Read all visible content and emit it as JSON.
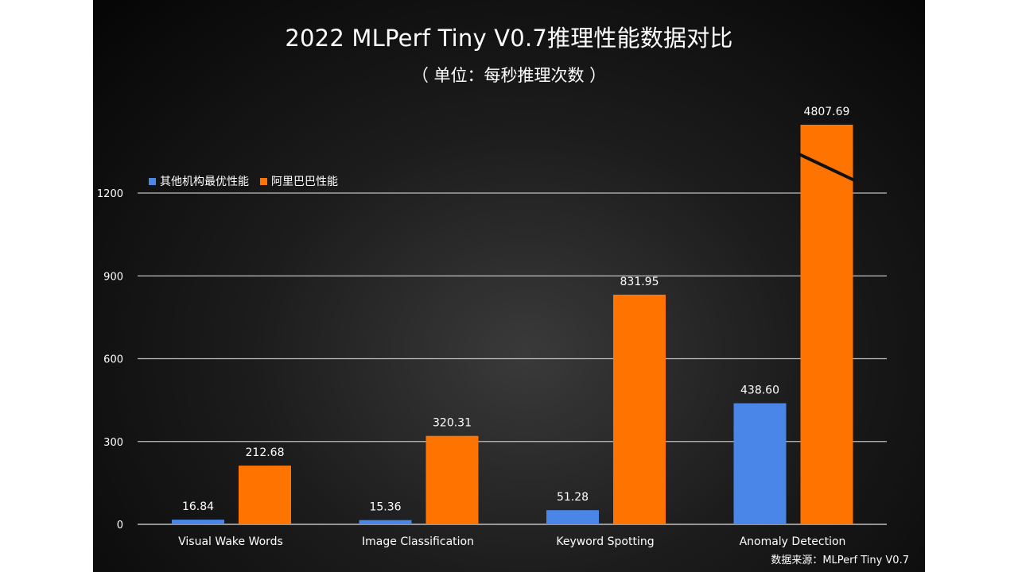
{
  "title": "2022 MLPerf Tiny V0.7推理性能数据对比",
  "subtitle": "（ 单位：每秒推理次数  ）",
  "source": "数据来源：MLPerf Tiny V0.7",
  "colors": {
    "background": "#141414",
    "grid": "#bfbfbf",
    "text": "#ffffff",
    "series_blue": "#4a86e8",
    "series_orange": "#ff7400",
    "axis_break_line": "#111111"
  },
  "chart_data": {
    "type": "bar",
    "title": "2022 MLPerf Tiny V0.7推理性能数据对比",
    "subtitle": "（ 单位：每秒推理次数  ）",
    "xlabel": "",
    "ylabel": "",
    "ylim": [
      0,
      1200
    ],
    "yticks": [
      0,
      300,
      600,
      900,
      1200
    ],
    "ytick_labels": [
      "0",
      "300",
      "600",
      "900",
      "1200"
    ],
    "grid": true,
    "legend_position": "top-left",
    "axis_break": "Anomaly Detection orange bar exceeds axis maximum and is drawn with a break line",
    "categories": [
      "Visual Wake Words",
      "Image Classification",
      "Keyword Spotting",
      "Anomaly Detection"
    ],
    "series": [
      {
        "name": "其他机构最优性能",
        "color": "#4a86e8",
        "values": [
          16.84,
          15.36,
          51.28,
          438.6
        ],
        "labels": [
          "16.84",
          "15.36",
          "51.28",
          "438.60"
        ]
      },
      {
        "name": "阿里巴巴性能",
        "color": "#ff7400",
        "values": [
          212.68,
          320.31,
          831.95,
          4807.69
        ],
        "labels": [
          "212.68",
          "320.31",
          "831.95",
          "4807.69"
        ]
      }
    ]
  }
}
